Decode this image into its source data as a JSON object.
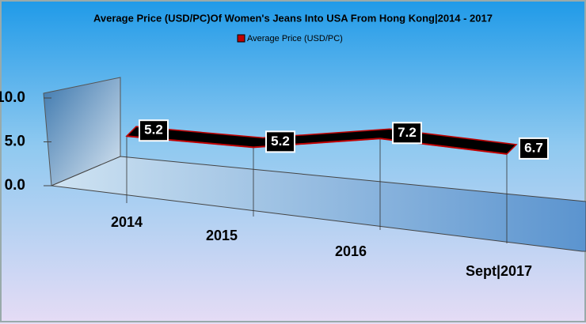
{
  "chart_data": {
    "type": "line3d",
    "title": "Average Price (USD/PC)Of Women's Jeans Into USA From Hong Kong|2014 - 2017",
    "categories": [
      "2014",
      "2015",
      "2016",
      "Sept|2017"
    ],
    "series": [
      {
        "name": "Average Price (USD/PC)",
        "color": "#c00000",
        "values": [
          5.2,
          5.2,
          7.2,
          6.7
        ]
      }
    ],
    "ylim": [
      0,
      10
    ],
    "yticks": [
      {
        "value": 0,
        "label": "0.0"
      },
      {
        "value": 5,
        "label": "5.0"
      },
      {
        "value": 10,
        "label": "10.0"
      }
    ],
    "legend": "top"
  }
}
